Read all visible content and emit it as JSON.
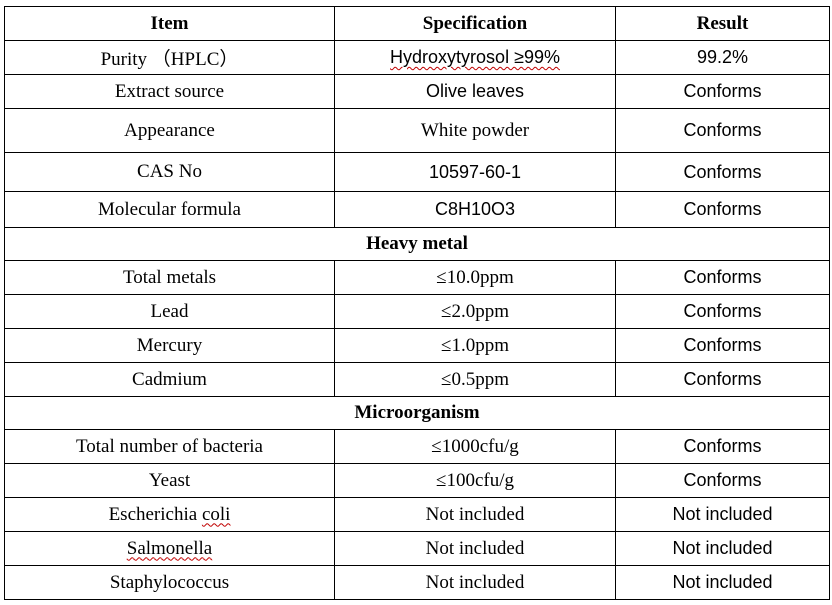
{
  "headers": {
    "item": "Item",
    "specification": "Specification",
    "result": "Result"
  },
  "purity": {
    "item": "Purity （HPLC）",
    "spec": "Hydroxytyrosol ≥99%",
    "result": "99.2%"
  },
  "extract_source": {
    "item": "Extract source",
    "spec": "Olive leaves",
    "result": "Conforms"
  },
  "appearance": {
    "item": "Appearance",
    "spec": "White powder",
    "result": "Conforms"
  },
  "cas_no": {
    "item": "CAS No",
    "spec": "10597-60-1",
    "result": "Conforms"
  },
  "molecular_formula": {
    "item": "Molecular formula",
    "spec": "C8H10O3",
    "result": "Conforms"
  },
  "heavy_metal_section": "Heavy metal",
  "heavy_metals": [
    {
      "item": "Total metals",
      "spec": "≤10.0ppm",
      "result": "Conforms"
    },
    {
      "item": "Lead",
      "spec": "≤2.0ppm",
      "result": "Conforms"
    },
    {
      "item": "Mercury",
      "spec": "≤1.0ppm",
      "result": "Conforms"
    },
    {
      "item": "Cadmium",
      "spec": "≤0.5ppm",
      "result": "Conforms"
    }
  ],
  "microorganism_section": "Microorganism",
  "microorganisms": [
    {
      "item": "Total number of bacteria",
      "spec": "≤1000cfu/g",
      "result": "Conforms"
    },
    {
      "item": "Yeast",
      "spec": "≤100cfu/g",
      "result": "Conforms"
    },
    {
      "item_prefix": "Escherichia ",
      "item_squiggle": "coli",
      "spec": "Not included",
      "result": "Not included"
    },
    {
      "item": "Salmonella",
      "spec": "Not included",
      "result": "Not included"
    },
    {
      "item": "Staphylococcus",
      "spec": "Not included",
      "result": "Not included"
    }
  ]
}
